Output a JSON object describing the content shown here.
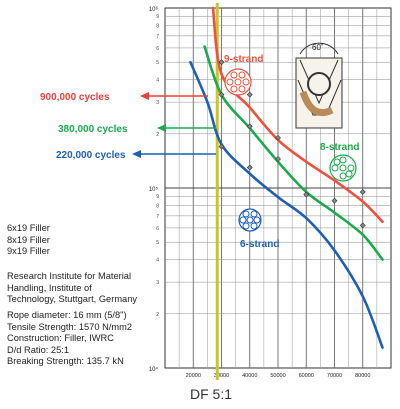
{
  "chart_data": {
    "type": "line",
    "x_ticks": [
      "20000",
      "30000",
      "40000",
      "50000",
      "60000",
      "70000",
      "80000"
    ],
    "y_ticks": [
      "10⁶",
      "10⁵",
      "10⁴"
    ],
    "y_scale": "log",
    "xlim": [
      10000,
      90000
    ],
    "ylim_exponent": [
      4,
      6
    ],
    "grid": true,
    "series": [
      {
        "name": "9-strand",
        "color": "#f0503c",
        "points": [
          [
            27000,
            1000000
          ],
          [
            30000,
            430000
          ],
          [
            40000,
            280000
          ],
          [
            50000,
            185000
          ],
          [
            60000,
            140000
          ],
          [
            70000,
            110000
          ],
          [
            80000,
            84000
          ],
          [
            87000,
            65000
          ]
        ]
      },
      {
        "name": "8-strand",
        "color": "#1aaa4c",
        "points": [
          [
            24000,
            610000
          ],
          [
            30000,
            330000
          ],
          [
            40000,
            215000
          ],
          [
            50000,
            140000
          ],
          [
            60000,
            95000
          ],
          [
            70000,
            73000
          ],
          [
            80000,
            55000
          ],
          [
            87000,
            40000
          ]
        ]
      },
      {
        "name": "6-strand",
        "color": "#1e5fb4",
        "points": [
          [
            19000,
            500000
          ],
          [
            25000,
            300000
          ],
          [
            30000,
            175000
          ],
          [
            40000,
            120000
          ],
          [
            50000,
            89000
          ],
          [
            60000,
            68000
          ],
          [
            70000,
            45000
          ],
          [
            80000,
            25000
          ],
          [
            87000,
            13000
          ]
        ]
      }
    ],
    "markers": [
      [
        30000,
        500000
      ],
      [
        40000,
        330000
      ],
      [
        30000,
        330000
      ],
      [
        40000,
        220000
      ],
      [
        30000,
        170000
      ],
      [
        40000,
        130000
      ],
      [
        50000,
        190000
      ],
      [
        50000,
        145000
      ],
      [
        60000,
        92000
      ],
      [
        70000,
        85000
      ],
      [
        80000,
        95000
      ],
      [
        80000,
        62000
      ]
    ],
    "vertical_line": {
      "x": 28500,
      "label": "DF 5:1",
      "color": "#c8c820"
    },
    "cycle_labels": [
      {
        "text": "900,000 cycles",
        "color": "#e8413a"
      },
      {
        "text": "380,000 cycles",
        "color": "#1aaa4c"
      },
      {
        "text": "220,000 cycles",
        "color": "#1e5fb4"
      }
    ],
    "strand_labels": {
      "nine": "9-strand",
      "eight": "8-strand",
      "six": "6-strand"
    },
    "angle_label": "60˚"
  },
  "notes": {
    "filler": [
      "6x19 Filler",
      "8x19 Filler",
      "9x19 Filler"
    ],
    "source": [
      "Research Institute for Material",
      "Handling, Institute of",
      "Technology, Stuttgart, Germany"
    ],
    "specs": [
      "Rope diameter: 16 mm (5/8\")",
      "Tensile Strength: 1570 N/mm2",
      "Construction: Filler, IWRC",
      "D/d Ratio: 25:1",
      "Breaking Strength: 135.7 kN"
    ]
  }
}
